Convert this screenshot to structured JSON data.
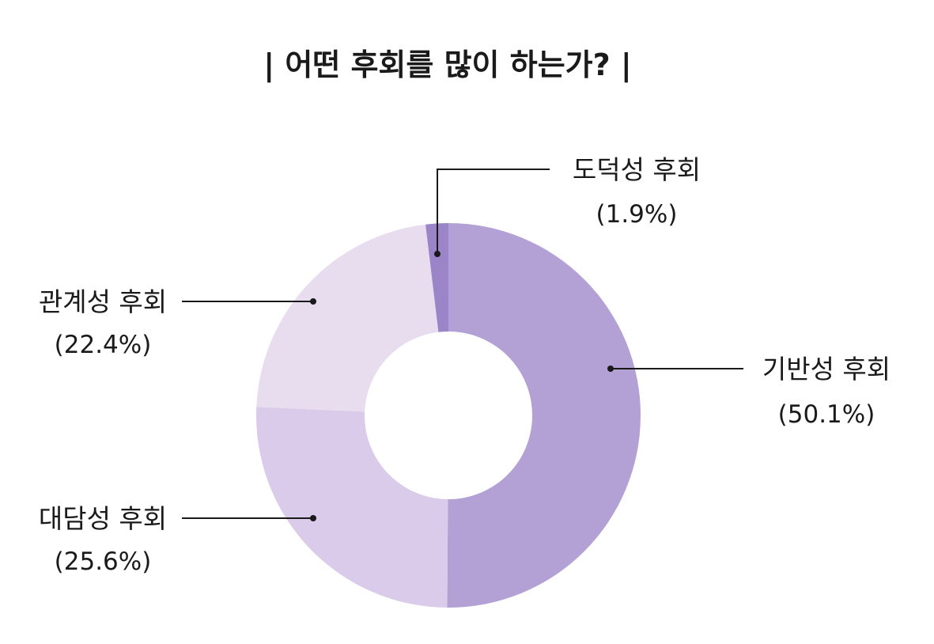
{
  "chart_data": {
    "type": "pie",
    "title": "| 어떤 후회를 많이 하는가? |",
    "donut": true,
    "slices": [
      {
        "label": "기반성 후회",
        "value": 50.1,
        "display": "(50.1%)",
        "color": "#b3a1d6"
      },
      {
        "label": "대담성 후회",
        "value": 25.6,
        "display": "(25.6%)",
        "color": "#d9cbe9"
      },
      {
        "label": "관계성 후회",
        "value": 22.4,
        "display": "(22.4%)",
        "color": "#e7ddef"
      },
      {
        "label": "도덕성 후회",
        "value": 1.9,
        "display": "(1.9%)",
        "color": "#9c84c8"
      }
    ]
  }
}
